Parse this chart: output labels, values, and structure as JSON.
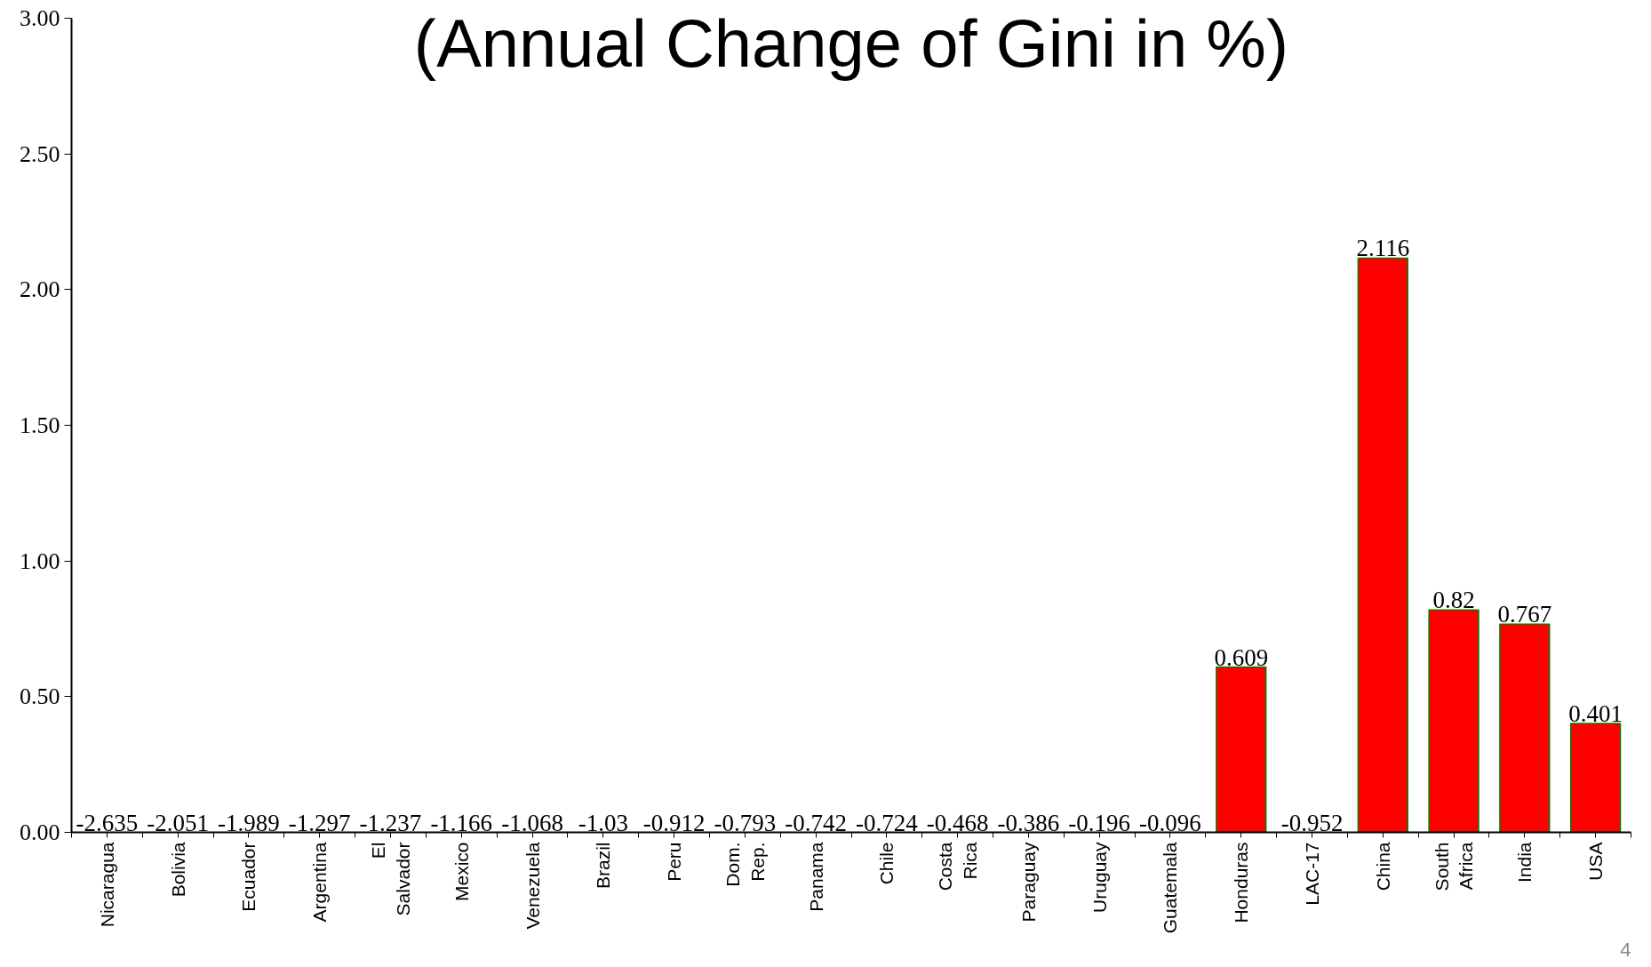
{
  "chart_data": {
    "type": "bar",
    "title": "(Annual Change of Gini in %)",
    "categories": [
      "Nicaragua",
      "Bolivia",
      "Ecuador",
      "Argentina",
      "El Salvador",
      "Mexico",
      "Venezuela",
      "Brazil",
      "Peru",
      "Dom. Rep.",
      "Panama",
      "Chile",
      "Costa Rica",
      "Paraguay",
      "Uruguay",
      "Guatemala",
      "Honduras",
      "LAC-17",
      "China",
      "South Africa",
      "India",
      "USA"
    ],
    "values": [
      null,
      null,
      null,
      null,
      null,
      null,
      null,
      null,
      null,
      null,
      null,
      null,
      null,
      null,
      null,
      null,
      0.609,
      null,
      2.116,
      0.82,
      0.767,
      0.401
    ],
    "value_labels": [
      "-2.635",
      "-2.051",
      "-1.989",
      "-1.297",
      "-1.237",
      "-1.166",
      "-1.068",
      "-1.03",
      "-0.912",
      "-0.793",
      "-0.742",
      "-0.724",
      "-0.468",
      "-0.386",
      "-0.196",
      "-0.096",
      "0.609",
      "-0.952",
      "2.116",
      "0.82",
      "0.767",
      "0.401"
    ],
    "color": "#ff0000",
    "ylim": [
      0,
      3
    ],
    "yticks": [
      {
        "value": 0,
        "label": "0.00"
      },
      {
        "value": 0.5,
        "label": "0.50"
      },
      {
        "value": 1,
        "label": "1.00"
      },
      {
        "value": 1.5,
        "label": "1.50"
      },
      {
        "value": 2,
        "label": "2.00"
      },
      {
        "value": 2.5,
        "label": "2.50"
      },
      {
        "value": 3,
        "label": "3.00"
      }
    ],
    "grid": false,
    "annotations": [
      "4"
    ]
  }
}
